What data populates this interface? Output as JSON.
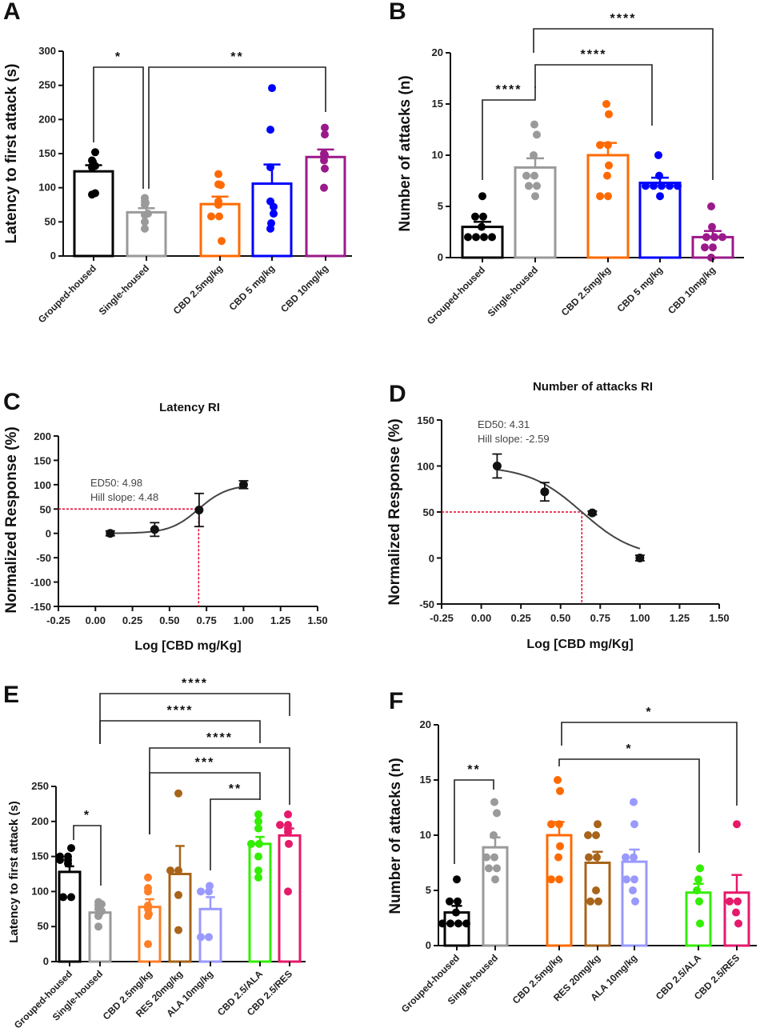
{
  "panel_letters": [
    "A",
    "B",
    "C",
    "D",
    "E",
    "F"
  ],
  "chart_data": [
    {
      "panel": "A",
      "type": "bar",
      "ylabel": "Latency to first attack (s)",
      "xlabel": "",
      "ylim": [
        0,
        300
      ],
      "yticks": [
        0,
        50,
        100,
        150,
        200,
        250,
        300
      ],
      "categories": [
        "Grouped-housed",
        "Single-housed",
        "CBD 2.5mg/kg",
        "CBD 5 mg/kg",
        "CBD 10mg/kg"
      ],
      "colors": [
        "#000000",
        "#9a9a9a",
        "#ff6a00",
        "#0000ff",
        "#9b1a8b"
      ],
      "means": [
        124,
        64,
        76,
        106,
        145
      ],
      "sem": [
        9,
        6,
        11,
        28,
        11
      ],
      "points": [
        [
          152,
          140,
          138,
          133,
          132,
          130,
          90,
          92
        ],
        [
          85,
          80,
          78,
          75,
          62,
          50,
          40,
          60
        ],
        [
          120,
          105,
          104,
          80,
          75,
          58,
          58,
          22
        ],
        [
          246,
          185,
          130,
          80,
          72,
          62,
          48,
          40
        ],
        [
          188,
          178,
          148,
          145,
          140,
          128,
          100,
          150
        ]
      ],
      "comparisons": [
        {
          "groups": [
            "Grouped-housed",
            "Single-housed"
          ],
          "label": "*"
        },
        {
          "groups": [
            "Single-housed",
            "CBD 10mg/kg"
          ],
          "label": "**"
        }
      ]
    },
    {
      "panel": "B",
      "type": "bar",
      "ylabel": "Number of attacks (n)",
      "xlabel": "",
      "ylim": [
        0,
        20
      ],
      "yticks": [
        0,
        5,
        10,
        15,
        20
      ],
      "categories": [
        "Grouped-housed",
        "Single-housed",
        "CBD 2.5mg/kg",
        "CBD 5 mg/kg",
        "CBD 10mg/kg"
      ],
      "colors": [
        "#000000",
        "#9a9a9a",
        "#ff6a00",
        "#0000ff",
        "#9b1a8b"
      ],
      "means": [
        3,
        8.8,
        10,
        7.3,
        2
      ],
      "sem": [
        0.5,
        0.9,
        1.2,
        0.5,
        0.6
      ],
      "points": [
        [
          6,
          4,
          4,
          3,
          2,
          2,
          2,
          2
        ],
        [
          13,
          12,
          10,
          8,
          8,
          7,
          7,
          6
        ],
        [
          15,
          14,
          11,
          11,
          9,
          8,
          6,
          6
        ],
        [
          10,
          8,
          7,
          7,
          7,
          7,
          7,
          6
        ],
        [
          5,
          3,
          2,
          2,
          2,
          1,
          1,
          0
        ]
      ],
      "comparisons": [
        {
          "groups": [
            "Grouped-housed",
            "Single-housed"
          ],
          "label": "****"
        },
        {
          "groups": [
            "Single-housed",
            "CBD 5 mg/kg"
          ],
          "label": "****"
        },
        {
          "groups": [
            "Single-housed",
            "CBD 10mg/kg"
          ],
          "label": "****"
        }
      ]
    },
    {
      "panel": "C",
      "type": "line",
      "title": "Latency RI",
      "ylabel": "Normalized Response (%)",
      "xlabel": "Log [CBD mg/Kg]",
      "xlim": [
        -0.25,
        1.5
      ],
      "xticks": [
        "-0.25",
        "0.00",
        "0.25",
        "0.50",
        "0.75",
        "1.00",
        "1.25",
        "1.50"
      ],
      "ylim": [
        -150,
        200
      ],
      "yticks": [
        -150,
        -100,
        -50,
        0,
        50,
        100,
        150,
        200
      ],
      "x": [
        0.1,
        0.4,
        0.7,
        1.0
      ],
      "y": [
        0,
        8,
        48,
        100
      ],
      "err": [
        5,
        14,
        34,
        8
      ],
      "fit": {
        "log_ed50": 0.697,
        "hill": 4.48
      },
      "reference": {
        "y": 50,
        "x": 0.697,
        "color": "#e8002a"
      },
      "annotations": [
        "ED50: 4.98",
        "Hill slope: 4.48"
      ]
    },
    {
      "panel": "D",
      "type": "line",
      "title": "Number of attacks RI",
      "ylabel": "Normalized Response (%)",
      "xlabel": "Log [CBD mg/Kg]",
      "xlim": [
        -0.25,
        1.5
      ],
      "xticks": [
        "-0.25",
        "0.00",
        "0.25",
        "0.50",
        "0.75",
        "1.00",
        "1.25",
        "1.50"
      ],
      "ylim": [
        -50,
        150
      ],
      "yticks": [
        -50,
        0,
        50,
        100,
        150
      ],
      "x": [
        0.1,
        0.4,
        0.7,
        1.0
      ],
      "y": [
        100,
        72,
        49,
        0
      ],
      "err": [
        13,
        10,
        2,
        3
      ],
      "fit": {
        "log_ed50": 0.634,
        "hill": -2.59
      },
      "reference": {
        "y": 50,
        "x": 0.634,
        "color": "#e8002a"
      },
      "annotations": [
        "ED50: 4.31",
        "Hill slope: -2.59"
      ]
    },
    {
      "panel": "E",
      "type": "bar",
      "ylabel": "Latency to first attack (s)",
      "xlabel": "",
      "ylim": [
        0,
        250
      ],
      "yticks": [
        0,
        50,
        100,
        150,
        200,
        250
      ],
      "categories": [
        "Grouped-housed",
        "Single-housed",
        "CBD 2.5mg/kg",
        "RES 20mg/kg",
        "ALA 10mg/kg",
        "CBD 2.5/ALA",
        "CBD 2.5/RES"
      ],
      "colors": [
        "#000000",
        "#9a9a9a",
        "#ff7f27",
        "#a8641a",
        "#9999ff",
        "#33ee00",
        "#e6196b"
      ],
      "means": [
        128,
        70,
        78,
        125,
        75,
        168,
        180
      ],
      "sem": [
        8,
        5,
        11,
        40,
        17,
        10,
        10
      ],
      "points": [
        [
          162,
          150,
          150,
          145,
          145,
          140,
          92,
          92
        ],
        [
          85,
          82,
          80,
          75,
          72,
          68,
          65,
          50
        ],
        [
          120,
          105,
          100,
          80,
          75,
          68,
          65,
          25
        ],
        [
          240,
          130,
          130,
          95,
          45
        ],
        [
          108,
          100,
          100,
          35,
          35
        ],
        [
          210,
          200,
          190,
          168,
          168,
          150,
          130,
          120
        ],
        [
          210,
          195,
          195,
          190,
          185,
          168,
          100
        ]
      ],
      "comparisons": [
        {
          "groups": [
            "Grouped-housed",
            "Single-housed"
          ],
          "label": "*"
        },
        {
          "groups": [
            "Single-housed",
            "CBD 2.5/RES"
          ],
          "label": "****"
        },
        {
          "groups": [
            "Single-housed",
            "CBD 2.5/ALA"
          ],
          "label": "****"
        },
        {
          "groups": [
            "CBD 2.5mg/kg",
            "CBD 2.5/RES"
          ],
          "label": "****"
        },
        {
          "groups": [
            "CBD 2.5mg/kg",
            "CBD 2.5/ALA"
          ],
          "label": "***"
        },
        {
          "groups": [
            "ALA 10mg/kg",
            "CBD 2.5/ALA"
          ],
          "label": "**"
        }
      ]
    },
    {
      "panel": "F",
      "type": "bar",
      "ylabel": "Number of attacks (n)",
      "xlabel": "",
      "ylim": [
        0,
        20
      ],
      "yticks": [
        0,
        5,
        10,
        15,
        20
      ],
      "categories": [
        "Grouped-housed",
        "Single-housed",
        "CBD 2.5mg/kg",
        "RES 20mg/kg",
        "ALA 10mg/kg",
        "CBD 2.5/ALA",
        "CBD 2.5/RES"
      ],
      "colors": [
        "#000000",
        "#9a9a9a",
        "#ff6a00",
        "#a8641a",
        "#9999ff",
        "#33ee00",
        "#e6196b"
      ],
      "means": [
        3,
        8.9,
        10,
        7.5,
        7.6,
        4.8,
        4.8
      ],
      "sem": [
        0.6,
        0.9,
        1.2,
        1.0,
        1.1,
        0.8,
        1.6
      ],
      "points": [
        [
          6,
          4,
          4,
          3,
          2,
          2,
          2,
          2
        ],
        [
          13,
          12,
          10,
          8,
          8,
          7,
          7,
          6
        ],
        [
          15,
          14,
          11,
          11,
          9,
          8,
          6,
          6
        ],
        [
          11,
          10,
          10,
          8,
          8,
          5,
          4,
          4
        ],
        [
          13,
          11,
          8,
          8,
          6,
          6,
          5,
          4
        ],
        [
          7,
          6,
          5,
          4,
          2
        ],
        [
          11,
          4,
          4,
          3,
          2
        ]
      ],
      "comparisons": [
        {
          "groups": [
            "Grouped-housed",
            "Single-housed"
          ],
          "label": "**"
        },
        {
          "groups": [
            "CBD 2.5mg/kg",
            "CBD 2.5/ALA"
          ],
          "label": "*"
        },
        {
          "groups": [
            "CBD 2.5mg/kg",
            "CBD 2.5/RES"
          ],
          "label": "*"
        }
      ]
    }
  ]
}
